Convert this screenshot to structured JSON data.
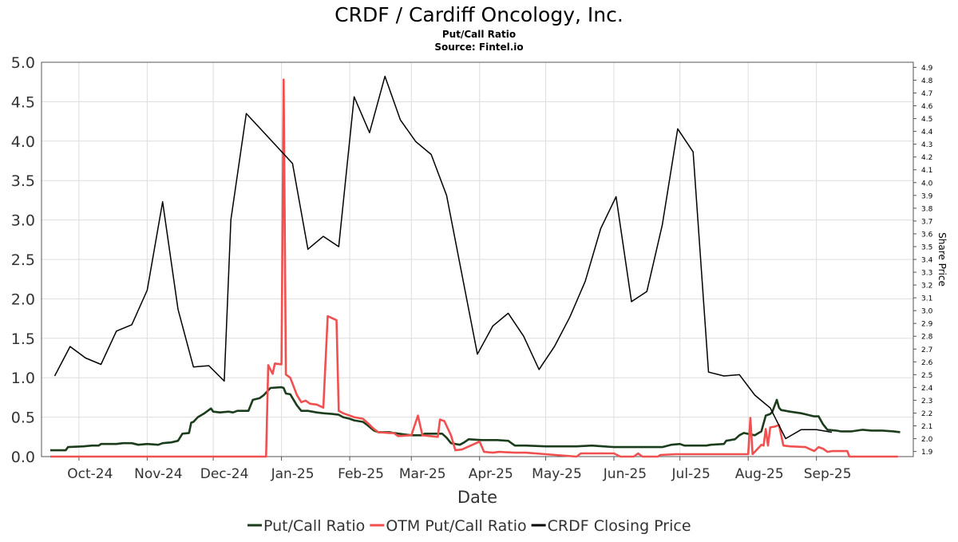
{
  "chart_data": {
    "type": "line",
    "title": "CRDF / Cardiff Oncology, Inc.",
    "subtitle": "Put/Call Ratio",
    "source": "Source: Fintel.io",
    "xlabel": "Date",
    "ylabel_right": "Share Price",
    "x_ticks": [
      "Oct-24",
      "Nov-24",
      "Dec-24",
      "Jan-25",
      "Feb-25",
      "Mar-25",
      "Apr-25",
      "May-25",
      "Jun-25",
      "Jul-25",
      "Aug-25",
      "Sep-25"
    ],
    "left_axis": {
      "range": [
        0,
        5.0
      ],
      "ticks": [
        "0.0",
        "0.5",
        "1.0",
        "1.5",
        "2.0",
        "2.5",
        "3.0",
        "3.5",
        "4.0",
        "4.5",
        "5.0"
      ]
    },
    "right_axis": {
      "range": [
        1.86,
        4.94
      ],
      "ticks": [
        "1.9",
        "2.0",
        "2.1",
        "2.2",
        "2.3",
        "2.4",
        "2.5",
        "2.6",
        "2.7",
        "2.8",
        "2.9",
        "3.0",
        "3.1",
        "3.2",
        "3.3",
        "3.4",
        "3.5",
        "3.6",
        "3.7",
        "3.8",
        "3.9",
        "4.0",
        "4.1",
        "4.2",
        "4.3",
        "4.4",
        "4.5",
        "4.6",
        "4.7",
        "4.8",
        "4.9"
      ]
    },
    "grid": true,
    "legend_position": "bottom",
    "series": [
      {
        "name": "Put/Call Ratio",
        "color": "#1b3d1b",
        "axis": "left",
        "points": [
          [
            "2024-09-18",
            0.08
          ],
          [
            "2024-09-25",
            0.08
          ],
          [
            "2024-09-26",
            0.12
          ],
          [
            "2024-10-03",
            0.13
          ],
          [
            "2024-10-07",
            0.14
          ],
          [
            "2024-10-10",
            0.14
          ],
          [
            "2024-10-11",
            0.16
          ],
          [
            "2024-10-18",
            0.16
          ],
          [
            "2024-10-21",
            0.17
          ],
          [
            "2024-10-25",
            0.17
          ],
          [
            "2024-10-28",
            0.15
          ],
          [
            "2024-11-01",
            0.16
          ],
          [
            "2024-11-06",
            0.15
          ],
          [
            "2024-11-08",
            0.17
          ],
          [
            "2024-11-12",
            0.18
          ],
          [
            "2024-11-15",
            0.2
          ],
          [
            "2024-11-17",
            0.29
          ],
          [
            "2024-11-20",
            0.3
          ],
          [
            "2024-11-21",
            0.43
          ],
          [
            "2024-11-22",
            0.44
          ],
          [
            "2024-11-24",
            0.5
          ],
          [
            "2024-11-27",
            0.55
          ],
          [
            "2024-11-30",
            0.61
          ],
          [
            "2024-12-01",
            0.57
          ],
          [
            "2024-12-04",
            0.56
          ],
          [
            "2024-12-08",
            0.57
          ],
          [
            "2024-12-10",
            0.56
          ],
          [
            "2024-12-12",
            0.58
          ],
          [
            "2024-12-17",
            0.58
          ],
          [
            "2024-12-19",
            0.72
          ],
          [
            "2024-12-22",
            0.74
          ],
          [
            "2024-12-24",
            0.78
          ],
          [
            "2024-12-27",
            0.87
          ],
          [
            "2025-01-01",
            0.88
          ],
          [
            "2025-01-02",
            0.87
          ],
          [
            "2025-01-03",
            0.8
          ],
          [
            "2025-01-05",
            0.79
          ],
          [
            "2025-01-08",
            0.65
          ],
          [
            "2025-01-10",
            0.58
          ],
          [
            "2025-01-13",
            0.58
          ],
          [
            "2025-01-17",
            0.56
          ],
          [
            "2025-01-20",
            0.55
          ],
          [
            "2025-01-24",
            0.54
          ],
          [
            "2025-01-27",
            0.53
          ],
          [
            "2025-01-29",
            0.5
          ],
          [
            "2025-02-01",
            0.48
          ],
          [
            "2025-02-03",
            0.46
          ],
          [
            "2025-02-07",
            0.44
          ],
          [
            "2025-02-09",
            0.4
          ],
          [
            "2025-02-12",
            0.33
          ],
          [
            "2025-02-14",
            0.31
          ],
          [
            "2025-02-19",
            0.31
          ],
          [
            "2025-02-21",
            0.3
          ],
          [
            "2025-02-26",
            0.28
          ],
          [
            "2025-03-01",
            0.27
          ],
          [
            "2025-03-06",
            0.27
          ],
          [
            "2025-03-07",
            0.29
          ],
          [
            "2025-03-13",
            0.29
          ],
          [
            "2025-03-15",
            0.29
          ],
          [
            "2025-03-17",
            0.24
          ],
          [
            "2025-03-19",
            0.17
          ],
          [
            "2025-03-23",
            0.15
          ],
          [
            "2025-03-25",
            0.18
          ],
          [
            "2025-03-27",
            0.22
          ],
          [
            "2025-04-02",
            0.21
          ],
          [
            "2025-04-09",
            0.21
          ],
          [
            "2025-04-14",
            0.2
          ],
          [
            "2025-04-17",
            0.14
          ],
          [
            "2025-04-22",
            0.14
          ],
          [
            "2025-05-01",
            0.13
          ],
          [
            "2025-05-15",
            0.13
          ],
          [
            "2025-05-22",
            0.14
          ],
          [
            "2025-06-01",
            0.12
          ],
          [
            "2025-06-12",
            0.12
          ],
          [
            "2025-06-20",
            0.12
          ],
          [
            "2025-06-23",
            0.12
          ],
          [
            "2025-06-27",
            0.15
          ],
          [
            "2025-07-01",
            0.16
          ],
          [
            "2025-07-03",
            0.14
          ],
          [
            "2025-07-08",
            0.14
          ],
          [
            "2025-07-13",
            0.14
          ],
          [
            "2025-07-15",
            0.15
          ],
          [
            "2025-07-21",
            0.16
          ],
          [
            "2025-07-22",
            0.2
          ],
          [
            "2025-07-26",
            0.22
          ],
          [
            "2025-07-28",
            0.27
          ],
          [
            "2025-07-30",
            0.3
          ],
          [
            "2025-08-04",
            0.27
          ],
          [
            "2025-08-07",
            0.32
          ],
          [
            "2025-08-09",
            0.52
          ],
          [
            "2025-08-11",
            0.54
          ],
          [
            "2025-08-12",
            0.57
          ],
          [
            "2025-08-14",
            0.72
          ],
          [
            "2025-08-15",
            0.62
          ],
          [
            "2025-08-16",
            0.59
          ],
          [
            "2025-08-20",
            0.57
          ],
          [
            "2025-08-25",
            0.55
          ],
          [
            "2025-08-28",
            0.53
          ],
          [
            "2025-08-31",
            0.51
          ],
          [
            "2025-09-02",
            0.51
          ],
          [
            "2025-09-04",
            0.41
          ],
          [
            "2025-09-06",
            0.34
          ],
          [
            "2025-09-10",
            0.33
          ],
          [
            "2025-09-12",
            0.32
          ],
          [
            "2025-09-17",
            0.32
          ],
          [
            "2025-09-22",
            0.34
          ],
          [
            "2025-09-26",
            0.33
          ],
          [
            "2025-09-28",
            0.33
          ],
          [
            "2025-10-01",
            0.33
          ],
          [
            "2025-10-06",
            0.32
          ],
          [
            "2025-10-09",
            0.31
          ]
        ]
      },
      {
        "name": "OTM Put/Call Ratio",
        "color": "#f0504f",
        "axis": "left",
        "points": [
          [
            "2024-09-18",
            0.0
          ],
          [
            "2024-12-25",
            0.0
          ],
          [
            "2024-12-26",
            1.16
          ],
          [
            "2024-12-28",
            1.05
          ],
          [
            "2024-12-29",
            1.18
          ],
          [
            "2025-01-01",
            1.17
          ],
          [
            "2025-01-02",
            4.78
          ],
          [
            "2025-01-03",
            1.04
          ],
          [
            "2025-01-05",
            1.0
          ],
          [
            "2025-01-08",
            0.78
          ],
          [
            "2025-01-10",
            0.69
          ],
          [
            "2025-01-12",
            0.71
          ],
          [
            "2025-01-14",
            0.67
          ],
          [
            "2025-01-17",
            0.66
          ],
          [
            "2025-01-20",
            0.62
          ],
          [
            "2025-01-22",
            1.78
          ],
          [
            "2025-01-26",
            1.73
          ],
          [
            "2025-01-27",
            0.58
          ],
          [
            "2025-01-29",
            0.55
          ],
          [
            "2025-02-03",
            0.5
          ],
          [
            "2025-02-07",
            0.48
          ],
          [
            "2025-02-09",
            0.43
          ],
          [
            "2025-02-12",
            0.35
          ],
          [
            "2025-02-14",
            0.31
          ],
          [
            "2025-02-19",
            0.3
          ],
          [
            "2025-02-21",
            0.3
          ],
          [
            "2025-02-23",
            0.26
          ],
          [
            "2025-03-01",
            0.27
          ],
          [
            "2025-03-04",
            0.52
          ],
          [
            "2025-03-06",
            0.27
          ],
          [
            "2025-03-13",
            0.25
          ],
          [
            "2025-03-14",
            0.47
          ],
          [
            "2025-03-16",
            0.45
          ],
          [
            "2025-03-19",
            0.27
          ],
          [
            "2025-03-21",
            0.08
          ],
          [
            "2025-03-24",
            0.09
          ],
          [
            "2025-04-01",
            0.19
          ],
          [
            "2025-04-03",
            0.06
          ],
          [
            "2025-04-07",
            0.05
          ],
          [
            "2025-04-10",
            0.06
          ],
          [
            "2025-04-17",
            0.05
          ],
          [
            "2025-04-22",
            0.05
          ],
          [
            "2025-05-01",
            0.03
          ],
          [
            "2025-05-15",
            0.0
          ],
          [
            "2025-05-17",
            0.04
          ],
          [
            "2025-05-22",
            0.04
          ],
          [
            "2025-06-01",
            0.04
          ],
          [
            "2025-06-04",
            0.0
          ],
          [
            "2025-06-10",
            0.0
          ],
          [
            "2025-06-12",
            0.04
          ],
          [
            "2025-06-14",
            0.0
          ],
          [
            "2025-06-21",
            0.0
          ],
          [
            "2025-06-22",
            0.02
          ],
          [
            "2025-06-29",
            0.03
          ],
          [
            "2025-07-01",
            0.03
          ],
          [
            "2025-07-13",
            0.03
          ],
          [
            "2025-07-22",
            0.03
          ],
          [
            "2025-08-01",
            0.03
          ],
          [
            "2025-08-02",
            0.49
          ],
          [
            "2025-08-03",
            0.03
          ],
          [
            "2025-08-05",
            0.09
          ],
          [
            "2025-08-07",
            0.15
          ],
          [
            "2025-08-08",
            0.14
          ],
          [
            "2025-08-09",
            0.35
          ],
          [
            "2025-08-10",
            0.14
          ],
          [
            "2025-08-11",
            0.37
          ],
          [
            "2025-08-13",
            0.38
          ],
          [
            "2025-08-15",
            0.4
          ],
          [
            "2025-08-17",
            0.14
          ],
          [
            "2025-08-20",
            0.13
          ],
          [
            "2025-08-27",
            0.12
          ],
          [
            "2025-08-31",
            0.07
          ],
          [
            "2025-09-02",
            0.12
          ],
          [
            "2025-09-04",
            0.1
          ],
          [
            "2025-09-06",
            0.06
          ],
          [
            "2025-09-08",
            0.07
          ],
          [
            "2025-09-15",
            0.07
          ],
          [
            "2025-09-16",
            0.0
          ],
          [
            "2025-10-08",
            0.0
          ]
        ]
      },
      {
        "name": "CRDF Closing Price",
        "color": "#000000",
        "axis": "right",
        "points": [
          [
            "2024-09-20",
            2.49
          ],
          [
            "2024-09-27",
            2.72
          ],
          [
            "2024-10-04",
            2.63
          ],
          [
            "2024-10-11",
            2.58
          ],
          [
            "2024-10-18",
            2.84
          ],
          [
            "2024-10-25",
            2.89
          ],
          [
            "2024-11-01",
            3.16
          ],
          [
            "2024-11-08",
            3.85
          ],
          [
            "2024-11-15",
            3.01
          ],
          [
            "2024-11-22",
            2.56
          ],
          [
            "2024-11-29",
            2.57
          ],
          [
            "2024-12-06",
            2.45
          ],
          [
            "2024-12-09",
            3.71
          ],
          [
            "2024-12-16",
            4.54
          ],
          [
            "2024-12-23",
            4.41
          ],
          [
            "2024-12-30",
            4.28
          ],
          [
            "2025-01-06",
            4.15
          ],
          [
            "2025-01-13",
            3.48
          ],
          [
            "2025-01-20",
            3.58
          ],
          [
            "2025-01-27",
            3.5
          ],
          [
            "2025-02-03",
            4.67
          ],
          [
            "2025-02-10",
            4.39
          ],
          [
            "2025-02-17",
            4.83
          ],
          [
            "2025-02-24",
            4.49
          ],
          [
            "2025-03-03",
            4.32
          ],
          [
            "2025-03-10",
            4.22
          ],
          [
            "2025-03-17",
            3.9
          ],
          [
            "2025-03-31",
            2.66
          ],
          [
            "2025-04-07",
            2.88
          ],
          [
            "2025-04-14",
            2.98
          ],
          [
            "2025-04-21",
            2.8
          ],
          [
            "2025-04-28",
            2.54
          ],
          [
            "2025-05-05",
            2.72
          ],
          [
            "2025-05-12",
            2.95
          ],
          [
            "2025-05-19",
            3.23
          ],
          [
            "2025-05-26",
            3.64
          ],
          [
            "2025-06-02",
            3.89
          ],
          [
            "2025-06-09",
            3.07
          ],
          [
            "2025-06-16",
            3.15
          ],
          [
            "2025-06-23",
            3.67
          ],
          [
            "2025-06-30",
            4.42
          ],
          [
            "2025-07-07",
            4.24
          ],
          [
            "2025-07-14",
            2.52
          ],
          [
            "2025-07-21",
            2.49
          ],
          [
            "2025-07-28",
            2.5
          ],
          [
            "2025-08-04",
            2.34
          ],
          [
            "2025-08-11",
            2.24
          ],
          [
            "2025-08-18",
            2.0
          ],
          [
            "2025-08-25",
            2.07
          ],
          [
            "2025-09-01",
            2.07
          ],
          [
            "2025-09-08",
            2.05
          ]
        ]
      }
    ]
  }
}
